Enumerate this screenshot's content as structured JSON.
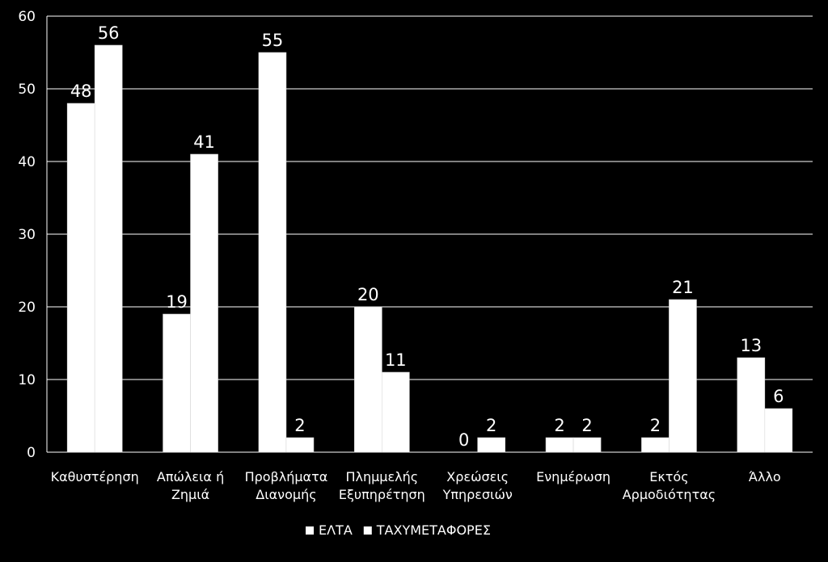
{
  "chart_data": {
    "type": "bar",
    "title": "",
    "xlabel": "",
    "ylabel": "",
    "ylim": [
      0,
      60
    ],
    "yticks": [
      0,
      10,
      20,
      30,
      40,
      50,
      60
    ],
    "grid": true,
    "legend_position": "bottom",
    "categories": [
      [
        "Καθυστέρηση"
      ],
      [
        "Απώλεια ή",
        "Ζημιά"
      ],
      [
        "Προβλήματα",
        "Διανομής"
      ],
      [
        "Πλημμελής",
        "Εξυπηρέτηση"
      ],
      [
        "Χρεώσεις",
        "Υπηρεσιών"
      ],
      [
        "Ενημέρωση"
      ],
      [
        "Εκτός",
        "Αρμοδιότητας"
      ],
      [
        "Άλλο"
      ]
    ],
    "series": [
      {
        "name": "ΕΛΤΑ",
        "values": [
          48,
          19,
          55,
          20,
          0,
          2,
          2,
          13
        ]
      },
      {
        "name": "ΤΑΧΥΜΕΤΑΦΟΡΕΣ",
        "values": [
          56,
          41,
          2,
          11,
          2,
          2,
          21,
          6
        ]
      }
    ],
    "colors": {
      "background": "#000000",
      "bar": "#ffffff",
      "grid": "#ffffff",
      "text": "#ffffff"
    }
  }
}
